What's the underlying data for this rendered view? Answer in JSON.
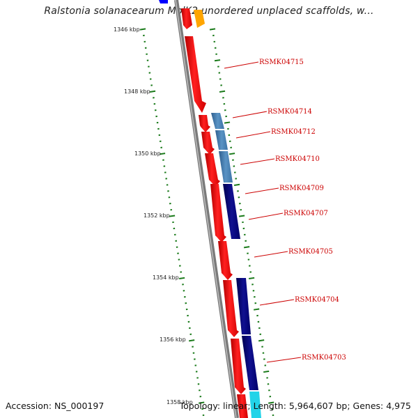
{
  "title": "Ralstonia solanacearum MolK2 unordered unplaced scaffolds, w...",
  "footer": {
    "accession": "Accession: NS_000197",
    "summary": "Topology: linear; Length: 5,964,607 bp; Genes: 4,975"
  },
  "axis": {
    "ticks": [
      {
        "label": "1346 kbp",
        "kbp": 1346
      },
      {
        "label": "1348 kbp",
        "kbp": 1348
      },
      {
        "label": "1350 kbp",
        "kbp": 1350
      },
      {
        "label": "1352 kbp",
        "kbp": 1352
      },
      {
        "label": "1354 kbp",
        "kbp": 1354
      },
      {
        "label": "1356 kbp",
        "kbp": 1356
      },
      {
        "label": "1358 kbp",
        "kbp": 1358
      }
    ]
  },
  "genes": [
    {
      "label": "RSMK04715"
    },
    {
      "label": "RSMK04714"
    },
    {
      "label": "RSMK04712"
    },
    {
      "label": "RSMK04710"
    },
    {
      "label": "RSMK04709"
    },
    {
      "label": "RSMK04707"
    },
    {
      "label": "RSMK04705"
    },
    {
      "label": "RSMK04704"
    },
    {
      "label": "RSMK04703"
    }
  ],
  "colors": {
    "backbone": "#808080",
    "strand_forward": "#ff0000",
    "track_steelblue": "#4682b4",
    "track_navy": "#000080",
    "track_cyan": "#22d3e8",
    "track_orange": "#ffa500",
    "track_blue": "#0000ff",
    "tick_green": "#1a7a1a",
    "label_red": "#cc0000"
  }
}
